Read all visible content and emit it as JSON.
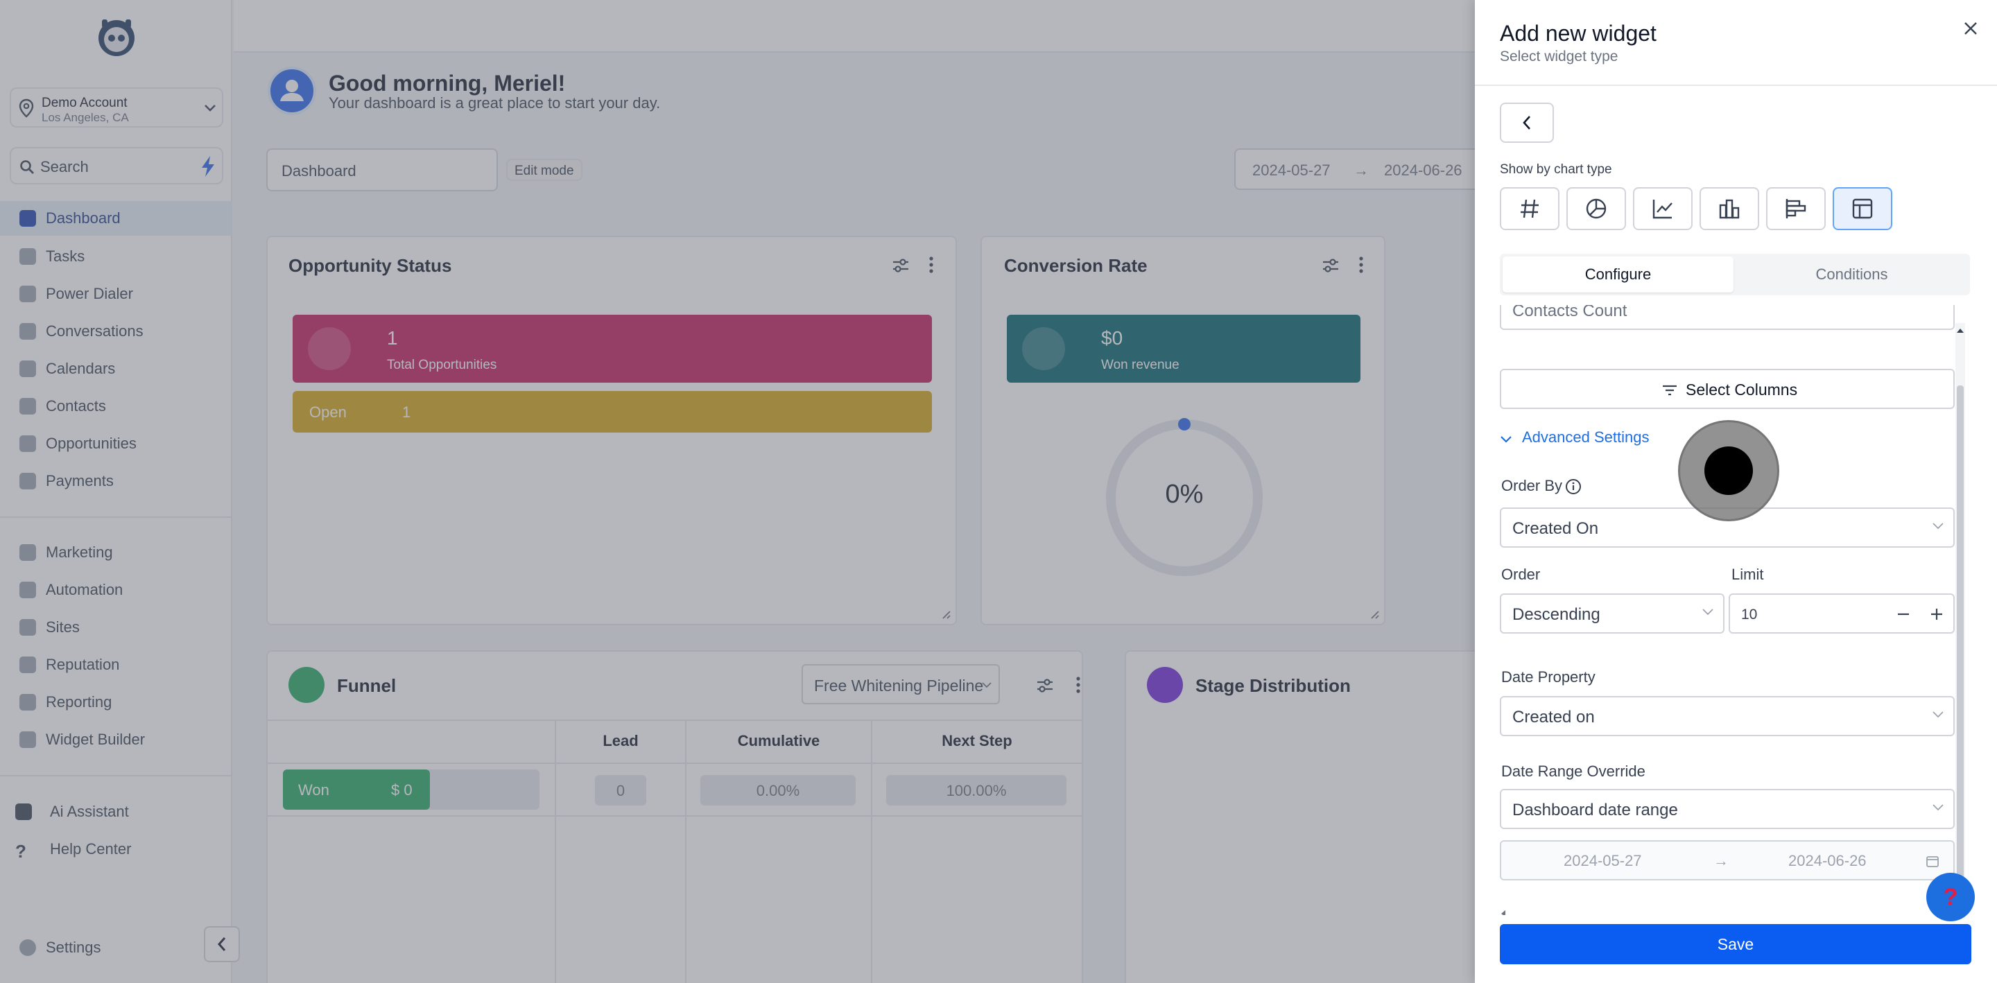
{
  "sidebar": {
    "account_name": "Demo Account",
    "account_location": "Los Angeles, CA",
    "search_label": "Search",
    "items": [
      {
        "label": "Dashboard",
        "icon": "dashboard-icon",
        "active": true
      },
      {
        "label": "Tasks",
        "icon": "tasks-icon"
      },
      {
        "label": "Power Dialer",
        "icon": "lightning-icon"
      },
      {
        "label": "Conversations",
        "icon": "chat-icon"
      },
      {
        "label": "Calendars",
        "icon": "calendar-icon"
      },
      {
        "label": "Contacts",
        "icon": "person-icon"
      },
      {
        "label": "Opportunities",
        "icon": "funnel-icon"
      },
      {
        "label": "Payments",
        "icon": "card-icon"
      },
      {
        "label": "Marketing",
        "icon": "megaphone-icon"
      },
      {
        "label": "Automation",
        "icon": "automation-icon"
      },
      {
        "label": "Sites",
        "icon": "sites-icon"
      },
      {
        "label": "Reputation",
        "icon": "star-icon"
      },
      {
        "label": "Reporting",
        "icon": "chart-icon"
      },
      {
        "label": "Widget Builder",
        "icon": "widget-icon"
      },
      {
        "label": "Ai Assistant",
        "icon": "robot-icon"
      },
      {
        "label": "Help Center",
        "icon": "question-icon"
      },
      {
        "label": "Settings",
        "icon": "gear-icon"
      }
    ]
  },
  "header": {
    "greeting": "Good morning, Meriel!",
    "subtitle": "Your dashboard is a great place to start your day.",
    "dashboard_select": "Dashboard",
    "edit_mode": "Edit mode",
    "date_start": "2024-05-27",
    "date_end": "2024-06-26"
  },
  "opportunity_status": {
    "title": "Opportunity Status",
    "total_value": "1",
    "total_label": "Total Opportunities",
    "open_label": "Open",
    "open_value": "1",
    "colors": {
      "total": "#c2185b",
      "open": "#d4a514"
    }
  },
  "conversion_rate": {
    "title": "Conversion Rate",
    "revenue_value": "$0",
    "revenue_label": "Won revenue",
    "percent": "0%",
    "colors": {
      "banner": "#00606b"
    }
  },
  "funnel": {
    "title": "Funnel",
    "pipeline": "Free Whitening Pipeline",
    "columns": [
      "Lead",
      "Cumulative",
      "Next Step"
    ],
    "rows": [
      {
        "stage": "Won",
        "amount": "$ 0",
        "lead": "0",
        "cumulative": "0.00%",
        "next_step": "100.00%"
      }
    ]
  },
  "stage_distribution": {
    "title": "Stage Distribution"
  },
  "drawer": {
    "title": "Add new widget",
    "subtitle": "Select widget type",
    "show_by_label": "Show by chart type",
    "chart_types": [
      "number-icon",
      "pie-icon",
      "line-chart-icon",
      "bar-chart-icon",
      "horizontal-bar-icon",
      "table-icon"
    ],
    "tabs": [
      "Configure",
      "Conditions"
    ],
    "contacts_count": "Contacts Count",
    "select_columns": "Select Columns",
    "advanced_settings": "Advanced Settings",
    "order_by_label": "Order By",
    "order_by_value": "Created On",
    "order_label": "Order",
    "order_value": "Descending",
    "limit_label": "Limit",
    "limit_value": "10",
    "date_property_label": "Date Property",
    "date_property_value": "Created on",
    "date_range_override_label": "Date Range Override",
    "date_range_override_value": "Dashboard date range",
    "date_start": "2024-05-27",
    "date_end": "2024-06-26",
    "save_label": "Save",
    "accent": "#0b5cf0"
  }
}
